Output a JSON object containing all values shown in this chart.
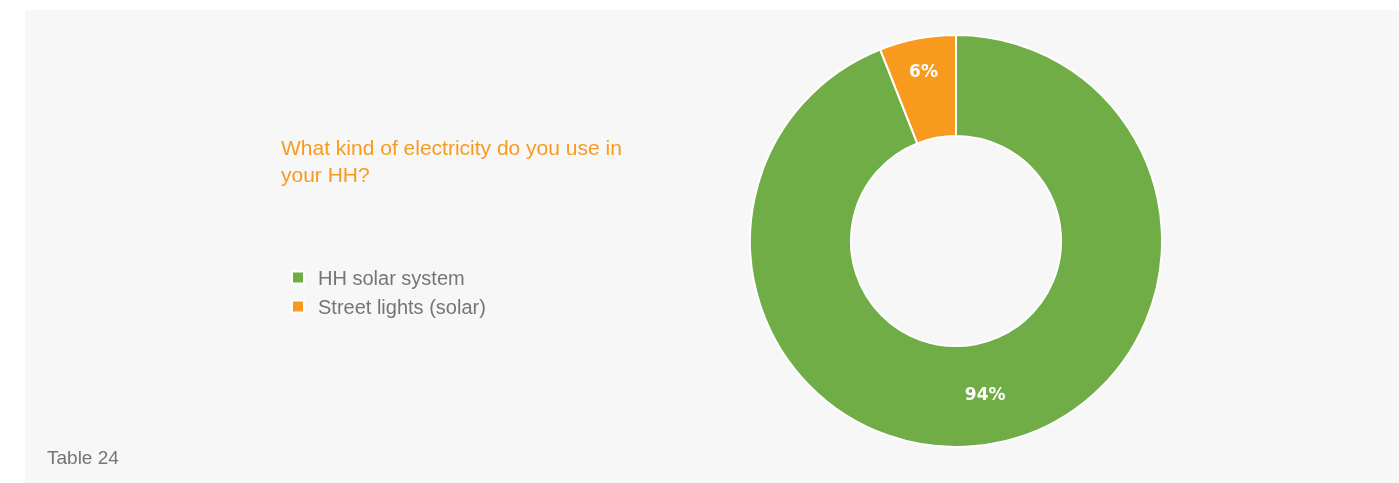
{
  "chart_data": {
    "type": "donut",
    "title": "What kind of electricity do you use in your HH?",
    "categories": [
      "HH solar system",
      "Street lights (solar)"
    ],
    "values": [
      94,
      6
    ],
    "value_labels": [
      "94%",
      "6%"
    ],
    "colors": [
      "#70ad47",
      "#f79a1e"
    ],
    "legend": "left",
    "annotations": [
      "Table 24"
    ]
  }
}
